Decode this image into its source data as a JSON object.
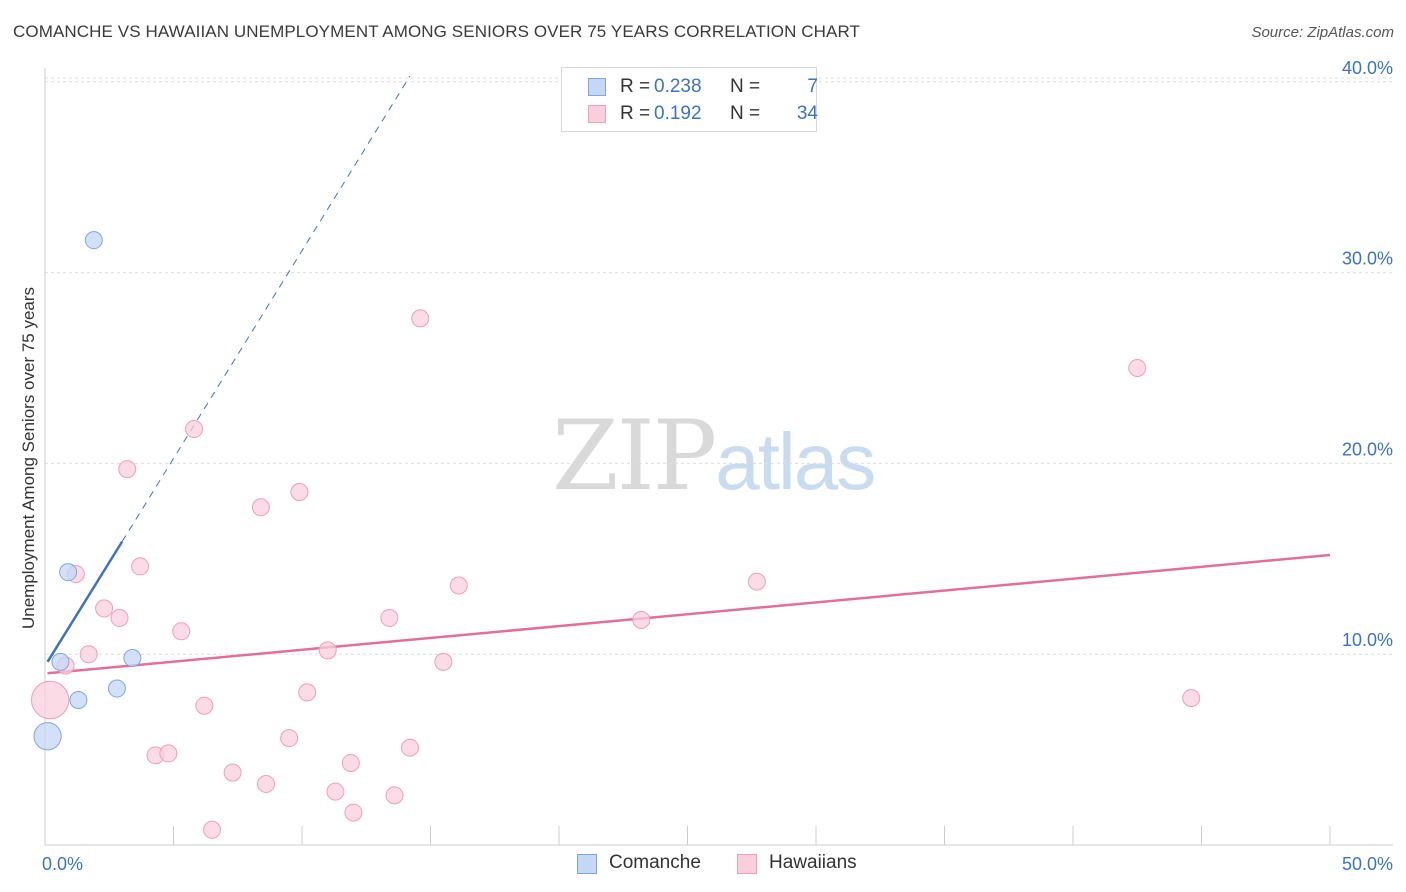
{
  "header": {
    "title": "COMANCHE VS HAWAIIAN UNEMPLOYMENT AMONG SENIORS OVER 75 YEARS CORRELATION CHART",
    "source": "Source: ZipAtlas.com"
  },
  "watermark": {
    "zip": "ZIP",
    "atlas": "atlas"
  },
  "legend": {
    "rows": [
      {
        "r_label": "R =",
        "r_value": "0.238",
        "n_label": "N =",
        "n_value": "7"
      },
      {
        "r_label": "R =",
        "r_value": "0.192",
        "n_label": "N =",
        "n_value": "34"
      }
    ]
  },
  "bottom_legend": {
    "comanche": "Comanche",
    "hawaiians": "Hawaiians"
  },
  "colors": {
    "comanche_fill": "#c4d7f5",
    "comanche_stroke": "#7fa6e0",
    "comanche_line": "#3a73c4",
    "hawaiians_fill": "#f9cfdc",
    "hawaiians_stroke": "#ef9fb8",
    "hawaiians_line": "#e0709a",
    "tick_label": "#3a73c4",
    "grid": "#dddddd"
  },
  "chart_data": {
    "type": "scatter",
    "title": "COMANCHE VS HAWAIIAN UNEMPLOYMENT AMONG SENIORS OVER 75 YEARS CORRELATION CHART",
    "xlabel": "",
    "ylabel": "Unemployment Among Seniors over 75 years",
    "xlim": [
      0,
      50
    ],
    "ylim": [
      0,
      41
    ],
    "x_tick_labels": [
      {
        "value": 0,
        "label": "0.0%"
      },
      {
        "value": 50,
        "label": "50.0%"
      }
    ],
    "x_minor_ticks": [
      0,
      5,
      10,
      15,
      20,
      25,
      30,
      35,
      40,
      45,
      50
    ],
    "y_ticks": [
      {
        "value": 10,
        "label": "10.0%"
      },
      {
        "value": 20,
        "label": "20.0%"
      },
      {
        "value": 30,
        "label": "30.0%"
      },
      {
        "value": 40,
        "label": "40.0%"
      }
    ],
    "series": [
      {
        "name": "Comanche",
        "points": [
          {
            "x": 0.1,
            "y": 5.7,
            "size": 1.6
          },
          {
            "x": 0.6,
            "y": 9.6,
            "size": 1.0
          },
          {
            "x": 0.9,
            "y": 14.3,
            "size": 1.0
          },
          {
            "x": 1.3,
            "y": 7.6,
            "size": 1.0
          },
          {
            "x": 1.9,
            "y": 31.7,
            "size": 1.0
          },
          {
            "x": 3.4,
            "y": 9.8,
            "size": 1.0
          },
          {
            "x": 2.8,
            "y": 8.2,
            "size": 1.0
          }
        ],
        "trend": {
          "x1": 0.1,
          "y1": 9.6,
          "x2": 3.0,
          "y2": 15.9,
          "dash_x2": 14.2,
          "dash_y2": 40.3
        }
      },
      {
        "name": "Hawaiians",
        "points": [
          {
            "x": 0.2,
            "y": 7.6,
            "size": 2.2
          },
          {
            "x": 0.8,
            "y": 9.4,
            "size": 1.0
          },
          {
            "x": 1.2,
            "y": 14.2,
            "size": 1.0
          },
          {
            "x": 1.7,
            "y": 10.0,
            "size": 1.0
          },
          {
            "x": 2.3,
            "y": 12.4,
            "size": 1.0
          },
          {
            "x": 2.9,
            "y": 11.9,
            "size": 1.0
          },
          {
            "x": 3.2,
            "y": 19.7,
            "size": 1.0
          },
          {
            "x": 3.7,
            "y": 14.6,
            "size": 1.0
          },
          {
            "x": 4.3,
            "y": 4.7,
            "size": 1.0
          },
          {
            "x": 4.8,
            "y": 4.8,
            "size": 1.0
          },
          {
            "x": 5.3,
            "y": 11.2,
            "size": 1.0
          },
          {
            "x": 5.8,
            "y": 21.8,
            "size": 1.0
          },
          {
            "x": 6.2,
            "y": 7.3,
            "size": 1.0
          },
          {
            "x": 6.5,
            "y": 0.8,
            "size": 1.0
          },
          {
            "x": 7.3,
            "y": 3.8,
            "size": 1.0
          },
          {
            "x": 8.4,
            "y": 17.7,
            "size": 1.0
          },
          {
            "x": 8.6,
            "y": 3.2,
            "size": 1.0
          },
          {
            "x": 9.5,
            "y": 5.6,
            "size": 1.0
          },
          {
            "x": 9.9,
            "y": 18.5,
            "size": 1.0
          },
          {
            "x": 10.2,
            "y": 8.0,
            "size": 1.0
          },
          {
            "x": 11.0,
            "y": 10.2,
            "size": 1.0
          },
          {
            "x": 11.3,
            "y": 2.8,
            "size": 1.0
          },
          {
            "x": 11.9,
            "y": 4.3,
            "size": 1.0
          },
          {
            "x": 12.0,
            "y": 1.7,
            "size": 1.0
          },
          {
            "x": 13.4,
            "y": 11.9,
            "size": 1.0
          },
          {
            "x": 13.6,
            "y": 2.6,
            "size": 1.0
          },
          {
            "x": 14.2,
            "y": 5.1,
            "size": 1.0
          },
          {
            "x": 14.6,
            "y": 27.6,
            "size": 1.0
          },
          {
            "x": 15.5,
            "y": 9.6,
            "size": 1.0
          },
          {
            "x": 16.1,
            "y": 13.6,
            "size": 1.0
          },
          {
            "x": 23.2,
            "y": 11.8,
            "size": 1.0
          },
          {
            "x": 27.7,
            "y": 13.8,
            "size": 1.0
          },
          {
            "x": 42.5,
            "y": 25.0,
            "size": 1.0
          },
          {
            "x": 44.6,
            "y": 7.7,
            "size": 1.0
          }
        ],
        "trend": {
          "x1": 0.1,
          "y1": 9.0,
          "x2": 50.0,
          "y2": 15.2
        }
      }
    ],
    "legend": {
      "position": "top-center"
    },
    "grid": true
  }
}
